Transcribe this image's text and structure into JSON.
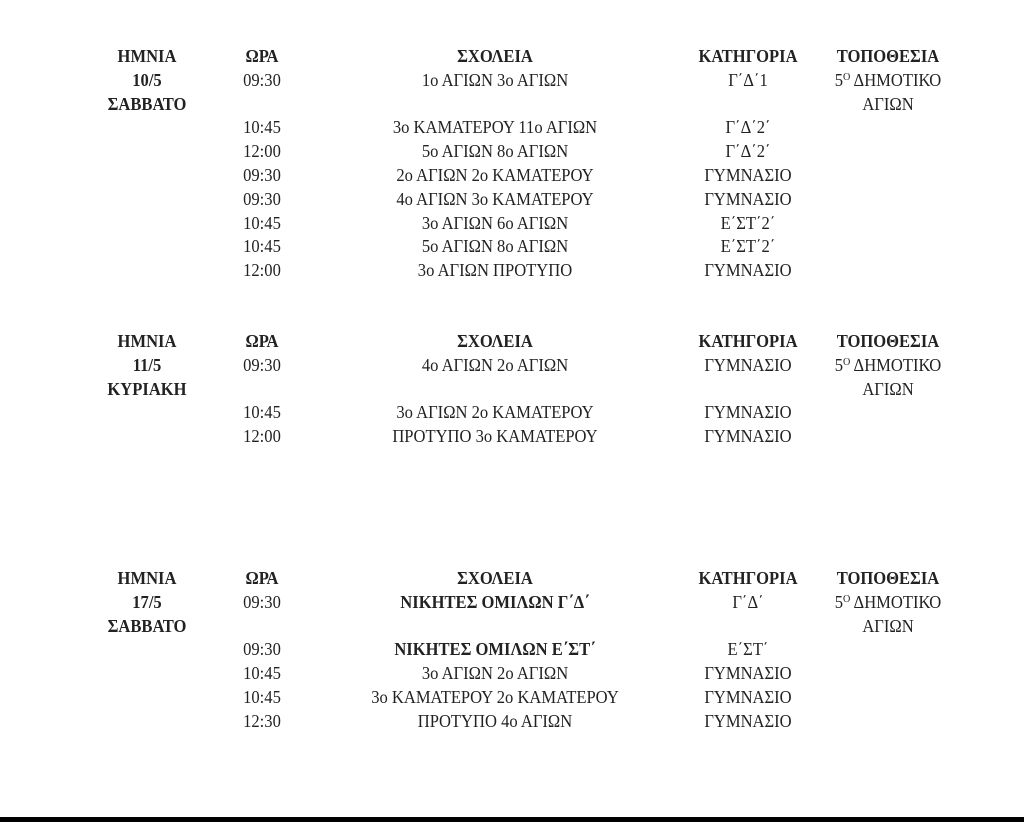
{
  "headers": {
    "date": "ΗΜΝΙΑ",
    "time": "ΩΡΑ",
    "schools": "ΣΧΟΛΕΙΑ",
    "category": "ΚΑΤΗΓΟΡΙΑ",
    "location": "ΤΟΠΟΘΕΣΙΑ"
  },
  "sections": [
    {
      "date_line1": "10/5",
      "date_line2": "ΣΑΒΒΑΤΟ",
      "location": {
        "number": "5",
        "sup": "Ο",
        "line1": "ΔΗΜΟΤΙΚΟ",
        "line2": "ΑΓΙΩΝ"
      },
      "first_match": {
        "time": "09:30",
        "schools": "1ο ΑΓΙΩΝ 3ο ΑΓΙΩΝ",
        "category": "Γ΄Δ΄1",
        "bold": false
      },
      "matches": [
        {
          "time": "10:45",
          "schools": "3ο ΚΑΜΑΤΕΡΟΥ 11ο ΑΓΙΩΝ",
          "category": "Γ΄Δ΄2΄",
          "bold": false
        },
        {
          "time": "12:00",
          "schools": "5ο ΑΓΙΩΝ 8ο ΑΓΙΩΝ",
          "category": "Γ΄Δ΄2΄",
          "bold": false
        },
        {
          "time": "09:30",
          "schools": "2ο ΑΓΙΩΝ 2ο ΚΑΜΑΤΕΡΟΥ",
          "category": "ΓΥΜΝΑΣΙΟ",
          "bold": false
        },
        {
          "time": "09:30",
          "schools": "4ο ΑΓΙΩΝ 3ο ΚΑΜΑΤΕΡΟΥ",
          "category": "ΓΥΜΝΑΣΙΟ",
          "bold": false
        },
        {
          "time": "10:45",
          "schools": "3ο ΑΓΙΩΝ 6ο ΑΓΙΩΝ",
          "category": "Ε΄ΣΤ΄2΄",
          "bold": false
        },
        {
          "time": "10:45",
          "schools": "5ο ΑΓΙΩΝ 8ο ΑΓΙΩΝ",
          "category": "Ε΄ΣΤ΄2΄",
          "bold": false
        },
        {
          "time": "12:00",
          "schools": "3ο ΑΓΙΩΝ ΠΡΟΤΥΠΟ",
          "category": "ΓΥΜΝΑΣΙΟ",
          "bold": false
        }
      ]
    },
    {
      "date_line1": "11/5",
      "date_line2": "ΚΥΡΙΑΚΗ",
      "location": {
        "number": "5",
        "sup": "Ο",
        "line1": "ΔΗΜΟΤΙΚΟ",
        "line2": "ΑΓΙΩΝ"
      },
      "first_match": {
        "time": "09:30",
        "schools": "4ο ΑΓΙΩΝ 2ο ΑΓΙΩΝ",
        "category": "ΓΥΜΝΑΣΙΟ",
        "bold": false
      },
      "matches": [
        {
          "time": "10:45",
          "schools": "3ο ΑΓΙΩΝ 2ο ΚΑΜΑΤΕΡΟΥ",
          "category": "ΓΥΜΝΑΣΙΟ",
          "bold": false
        },
        {
          "time": "12:00",
          "schools": "ΠΡΟΤΥΠΟ 3ο ΚΑΜΑΤΕΡΟΥ",
          "category": "ΓΥΜΝΑΣΙΟ",
          "bold": false
        }
      ]
    },
    {
      "date_line1": "17/5",
      "date_line2": "ΣΑΒΒΑΤΟ",
      "location": {
        "number": "5",
        "sup": "Ο",
        "line1": "ΔΗΜΟΤΙΚΟ",
        "line2": "ΑΓΙΩΝ"
      },
      "first_match": {
        "time": "09:30",
        "schools": "ΝΙΚΗΤΕΣ ΟΜΙΛΩΝ Γ΄Δ΄",
        "category": "Γ΄Δ΄",
        "bold": true
      },
      "matches": [
        {
          "time": "09:30",
          "schools": "ΝΙΚΗΤΕΣ ΟΜΙΛΩΝ Ε΄ΣΤ΄",
          "category": "Ε΄ΣΤ΄",
          "bold": true
        },
        {
          "time": "10:45",
          "schools": "3ο ΑΓΙΩΝ 2ο ΑΓΙΩΝ",
          "category": "ΓΥΜΝΑΣΙΟ",
          "bold": false
        },
        {
          "time": "10:45",
          "schools": "3ο ΚΑΜΑΤΕΡΟΥ 2ο ΚΑΜΑΤΕΡΟΥ",
          "category": "ΓΥΜΝΑΣΙΟ",
          "bold": false
        },
        {
          "time": "12:30",
          "schools": "ΠΡΟΤΥΠΟ 4ο ΑΓΙΩΝ",
          "category": "ΓΥΜΝΑΣΙΟ",
          "bold": false
        }
      ]
    }
  ]
}
